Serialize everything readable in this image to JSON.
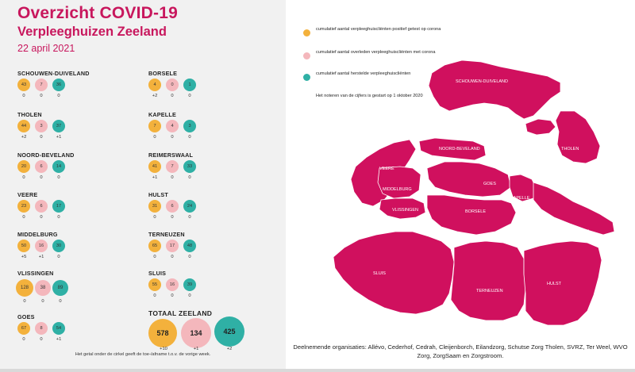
{
  "header": {
    "title": "Overzicht COVID-19",
    "subtitle": "Verpleeghuizen Zeeland",
    "date": "22 april 2021"
  },
  "colors": {
    "accent": "#c8175d",
    "positive": "#f3b13c",
    "deceased": "#f4b7bc",
    "recovered": "#2fb0a5"
  },
  "municipalities": [
    {
      "name": "SCHOUWEN-DUIVELAND",
      "values": [
        "43",
        "7",
        "36"
      ],
      "changes": [
        "0",
        "0",
        "0"
      ]
    },
    {
      "name": "THOLEN",
      "values": [
        "44",
        "3",
        "37"
      ],
      "changes": [
        "+2",
        "0",
        "+1"
      ]
    },
    {
      "name": "NOORD-BEVELAND",
      "values": [
        "20",
        "6",
        "14"
      ],
      "changes": [
        "0",
        "0",
        "0"
      ]
    },
    {
      "name": "VEERE",
      "values": [
        "23",
        "6",
        "17"
      ],
      "changes": [
        "0",
        "0",
        "0"
      ]
    },
    {
      "name": "MIDDELBURG",
      "values": [
        "50",
        "16",
        "30"
      ],
      "changes": [
        "+5",
        "+1",
        "0"
      ]
    },
    {
      "name": "VLISSINGEN",
      "values": [
        "128",
        "38",
        "89"
      ],
      "changes": [
        "0",
        "0",
        "0"
      ]
    },
    {
      "name": "GOES",
      "values": [
        "67",
        "8",
        "54"
      ],
      "changes": [
        "0",
        "0",
        "+1"
      ]
    },
    {
      "name": "BORSELE",
      "values": [
        "4",
        "0",
        "1"
      ],
      "changes": [
        "+2",
        "0",
        "0"
      ]
    },
    {
      "name": "KAPELLE",
      "values": [
        "7",
        "4",
        "3"
      ],
      "changes": [
        "0",
        "0",
        "0"
      ]
    },
    {
      "name": "REIMERSWAAL",
      "values": [
        "41",
        "7",
        "33"
      ],
      "changes": [
        "+1",
        "0",
        "0"
      ]
    },
    {
      "name": "HULST",
      "values": [
        "31",
        "6",
        "24"
      ],
      "changes": [
        "0",
        "0",
        "0"
      ]
    },
    {
      "name": "TERNEUZEN",
      "values": [
        "65",
        "17",
        "48"
      ],
      "changes": [
        "0",
        "0",
        "0"
      ]
    },
    {
      "name": "SLUIS",
      "values": [
        "55",
        "16",
        "39"
      ],
      "changes": [
        "0",
        "0",
        "0"
      ]
    }
  ],
  "total": {
    "label": "TOTAAL ZEELAND",
    "values": [
      "578",
      "134",
      "425"
    ],
    "changes": [
      "+10",
      "+1",
      "+2"
    ]
  },
  "footnote": "Het getal onder de cirkel geeft de toe-/afname t.o.v. de vorige week.",
  "legend": [
    {
      "label": "cumulatief aantal verpleeghuiscliënten positief getest op corona",
      "color": "#f3b13c"
    },
    {
      "label": "cumulatief aantal overleden verpleeghuiscliënten met corona",
      "color": "#f4b7bc"
    },
    {
      "label": "cumulatief aantal herstelde verpleeghuiscliënten",
      "color": "#2fb0a5"
    }
  ],
  "legend_note": "Het noteren van de cijfers is gestart op 1 oktober 2020",
  "map": {
    "fill_color": "#d0105e",
    "labels": [
      "SCHOUWEN-DUIVELAND",
      "THOLEN",
      "NOORD-BEVELAND",
      "VEERE",
      "GOES",
      "MIDDELBURG",
      "KAPELLE",
      "VLISSINGEN",
      "BORSELE",
      "REIMERSWAAL",
      "SLUIS",
      "TERNEUZEN",
      "HULST"
    ]
  },
  "organisations": "Deelnemende organisaties: Allévo, Cederhof, Cedrah, Cleijenborch, Eilandzorg, Schutse Zorg Tholen, SVRZ, Ter Weel, WVO Zorg, ZorgSaam en Zorgstroom."
}
